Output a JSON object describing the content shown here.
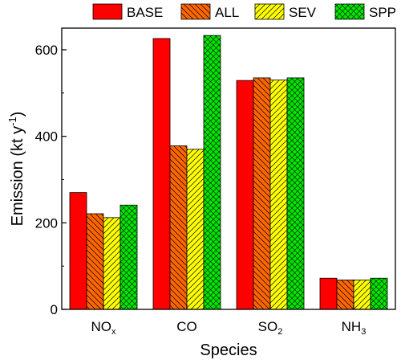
{
  "chart_data": {
    "type": "bar",
    "title": "",
    "xlabel": "Species",
    "ylabel": {
      "main": "Emission (kt y",
      "sup": "-1",
      "end": ")"
    },
    "categories": [
      {
        "base": "NO",
        "sub": "x",
        "sup": ""
      },
      {
        "base": "CO",
        "sub": "",
        "sup": ""
      },
      {
        "base": "SO",
        "sub": "2",
        "sup": ""
      },
      {
        "base": "NH",
        "sub": "3",
        "sup": ""
      }
    ],
    "series": [
      {
        "name": "BASE",
        "color": "#ff0000",
        "pattern": "solid",
        "values": [
          270,
          626,
          529,
          72
        ]
      },
      {
        "name": "ALL",
        "color": "#ff6600",
        "pattern": "diagonal-back",
        "values": [
          221,
          378,
          535,
          68
        ]
      },
      {
        "name": "SEV",
        "color": "#ffff00",
        "pattern": "diagonal-forward",
        "values": [
          212,
          370,
          530,
          68
        ]
      },
      {
        "name": "SPP",
        "color": "#00e600",
        "pattern": "crosshatch",
        "values": [
          241,
          633,
          535,
          72
        ]
      }
    ],
    "ylim": [
      0,
      650
    ],
    "yticks": [
      0,
      200,
      400,
      600
    ],
    "legend": "top",
    "grid": false
  }
}
